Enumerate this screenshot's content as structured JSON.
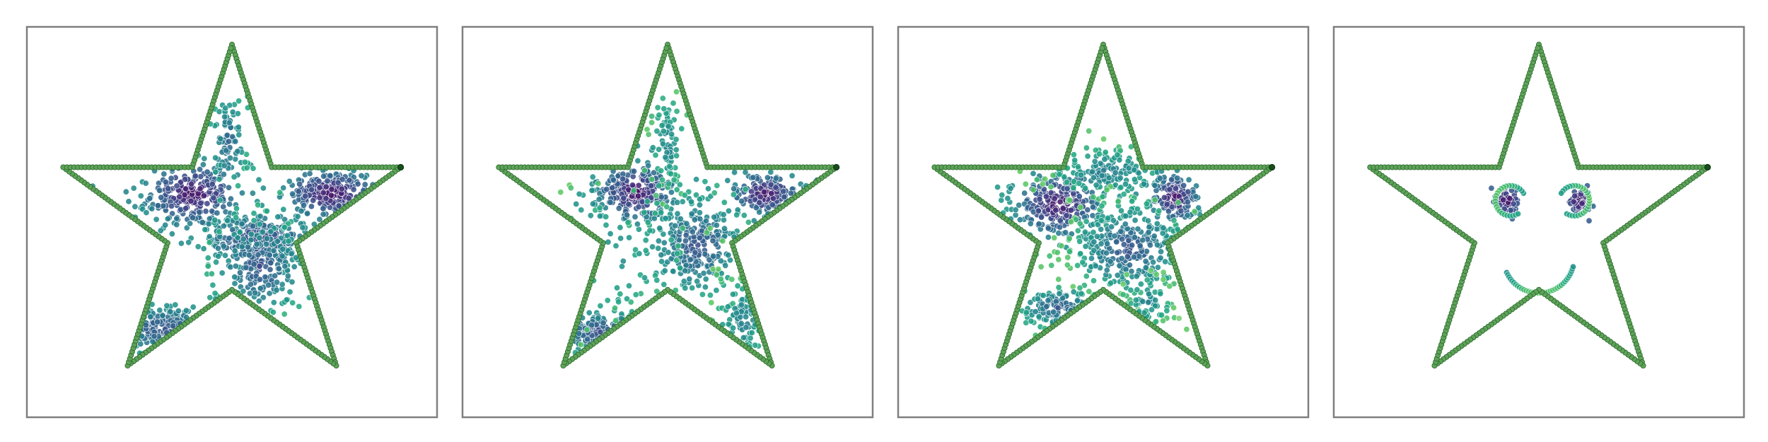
{
  "figure": {
    "panel_count": 4,
    "background": "#ffffff",
    "frame_color": "#7f7f7f"
  },
  "chart_data": [
    {
      "type": "scatter",
      "title": "",
      "xlabel": "",
      "ylabel": "",
      "grid": false,
      "axes_visible": false,
      "xlim": [
        -1.1,
        1.1
      ],
      "ylim": [
        -1.1,
        1.1
      ],
      "boundary": {
        "shape": "star",
        "vertices": [
          [
            0.0,
            1.0
          ],
          [
            0.224,
            0.309
          ],
          [
            0.951,
            0.309
          ],
          [
            0.363,
            -0.118
          ],
          [
            0.588,
            -0.809
          ],
          [
            0.0,
            -0.382
          ],
          [
            -0.588,
            -0.809
          ],
          [
            -0.363,
            -0.118
          ],
          [
            -0.951,
            0.309
          ],
          [
            -0.224,
            0.309
          ]
        ],
        "marker_color": "#5fa35a",
        "marker_edge": "#2e6e2e",
        "end_marker_color": "#174d1a"
      },
      "clusters": [
        {
          "cx": -0.22,
          "cy": 0.16,
          "sx": 0.14,
          "sy": 0.09,
          "n": 280,
          "color_range": [
            0.05,
            0.6
          ]
        },
        {
          "cx": -0.02,
          "cy": 0.45,
          "sx": 0.05,
          "sy": 0.13,
          "n": 90,
          "color_range": [
            0.4,
            0.75
          ]
        },
        {
          "cx": 0.56,
          "cy": 0.16,
          "sx": 0.14,
          "sy": 0.07,
          "n": 220,
          "color_range": [
            0.05,
            0.6
          ]
        },
        {
          "cx": 0.15,
          "cy": -0.1,
          "sx": 0.15,
          "sy": 0.07,
          "n": 260,
          "color_range": [
            0.2,
            0.65
          ]
        },
        {
          "cx": 0.16,
          "cy": -0.25,
          "sx": 0.13,
          "sy": 0.13,
          "n": 200,
          "color_range": [
            0.3,
            0.75
          ]
        },
        {
          "cx": -0.38,
          "cy": -0.6,
          "sx": 0.17,
          "sy": 0.07,
          "n": 150,
          "color_range": [
            0.3,
            0.7
          ]
        }
      ]
    },
    {
      "type": "scatter",
      "title": "",
      "xlabel": "",
      "ylabel": "",
      "grid": false,
      "axes_visible": false,
      "xlim": [
        -1.1,
        1.1
      ],
      "ylim": [
        -1.1,
        1.1
      ],
      "boundary": {
        "shape": "star",
        "vertices": [
          [
            0.0,
            1.0
          ],
          [
            0.224,
            0.309
          ],
          [
            0.951,
            0.309
          ],
          [
            0.363,
            -0.118
          ],
          [
            0.588,
            -0.809
          ],
          [
            0.0,
            -0.382
          ],
          [
            -0.588,
            -0.809
          ],
          [
            -0.363,
            -0.118
          ],
          [
            -0.951,
            0.309
          ],
          [
            -0.224,
            0.309
          ]
        ],
        "marker_color": "#5fa35a",
        "marker_edge": "#2e6e2e",
        "end_marker_color": "#174d1a"
      },
      "clusters": [
        {
          "cx": -0.18,
          "cy": 0.17,
          "sx": 0.12,
          "sy": 0.09,
          "n": 260,
          "color_range": [
            0.05,
            0.65
          ]
        },
        {
          "cx": 0.0,
          "cy": 0.45,
          "sx": 0.05,
          "sy": 0.14,
          "n": 80,
          "color_range": [
            0.55,
            0.85
          ]
        },
        {
          "cx": 0.55,
          "cy": 0.16,
          "sx": 0.1,
          "sy": 0.06,
          "n": 170,
          "color_range": [
            0.05,
            0.6
          ]
        },
        {
          "cx": 0.17,
          "cy": -0.13,
          "sx": 0.14,
          "sy": 0.14,
          "n": 300,
          "color_range": [
            0.3,
            0.75
          ]
        },
        {
          "cx": 0.42,
          "cy": -0.55,
          "sx": 0.08,
          "sy": 0.12,
          "n": 80,
          "color_range": [
            0.5,
            0.85
          ]
        },
        {
          "cx": -0.39,
          "cy": -0.62,
          "sx": 0.14,
          "sy": 0.06,
          "n": 120,
          "color_range": [
            0.3,
            0.7
          ]
        },
        {
          "cx": -0.3,
          "cy": -0.2,
          "sx": 0.3,
          "sy": 0.22,
          "n": 50,
          "color_range": [
            0.6,
            0.9
          ]
        }
      ]
    },
    {
      "type": "scatter",
      "title": "",
      "xlabel": "",
      "ylabel": "",
      "grid": false,
      "axes_visible": false,
      "xlim": [
        -1.1,
        1.1
      ],
      "ylim": [
        -1.1,
        1.1
      ],
      "boundary": {
        "shape": "star",
        "vertices": [
          [
            0.0,
            1.0
          ],
          [
            0.224,
            0.309
          ],
          [
            0.951,
            0.309
          ],
          [
            0.363,
            -0.118
          ],
          [
            0.588,
            -0.809
          ],
          [
            0.0,
            -0.382
          ],
          [
            -0.588,
            -0.809
          ],
          [
            -0.363,
            -0.118
          ],
          [
            -0.951,
            0.309
          ],
          [
            -0.224,
            0.309
          ]
        ],
        "marker_color": "#5fa35a",
        "marker_edge": "#2e6e2e",
        "end_marker_color": "#174d1a"
      },
      "clusters": [
        {
          "cx": -0.25,
          "cy": 0.1,
          "sx": 0.13,
          "sy": 0.1,
          "n": 260,
          "color_range": [
            0.05,
            0.65
          ]
        },
        {
          "cx": 0.03,
          "cy": 0.28,
          "sx": 0.16,
          "sy": 0.08,
          "n": 150,
          "color_range": [
            0.5,
            0.85
          ]
        },
        {
          "cx": 0.4,
          "cy": 0.14,
          "sx": 0.07,
          "sy": 0.07,
          "n": 150,
          "color_range": [
            0.05,
            0.6
          ]
        },
        {
          "cx": 0.15,
          "cy": -0.15,
          "sx": 0.17,
          "sy": 0.14,
          "n": 320,
          "color_range": [
            0.3,
            0.85
          ]
        },
        {
          "cx": -0.25,
          "cy": -0.48,
          "sx": 0.12,
          "sy": 0.06,
          "n": 120,
          "color_range": [
            0.35,
            0.8
          ]
        },
        {
          "cx": 0.25,
          "cy": -0.45,
          "sx": 0.08,
          "sy": 0.08,
          "n": 60,
          "color_range": [
            0.55,
            0.9
          ]
        }
      ]
    },
    {
      "type": "scatter",
      "title": "",
      "xlabel": "",
      "ylabel": "",
      "grid": false,
      "axes_visible": false,
      "xlim": [
        -1.1,
        1.1
      ],
      "ylim": [
        -1.1,
        1.1
      ],
      "boundary": {
        "shape": "star",
        "vertices": [
          [
            0.0,
            1.0
          ],
          [
            0.224,
            0.309
          ],
          [
            0.951,
            0.309
          ],
          [
            0.363,
            -0.118
          ],
          [
            0.588,
            -0.809
          ],
          [
            0.0,
            -0.382
          ],
          [
            -0.588,
            -0.809
          ],
          [
            -0.363,
            -0.118
          ],
          [
            -0.951,
            0.309
          ],
          [
            -0.224,
            0.309
          ]
        ],
        "marker_color": "#5fa35a",
        "marker_edge": "#2e6e2e",
        "end_marker_color": "#174d1a"
      },
      "clusters": [
        {
          "cx": -0.18,
          "cy": 0.12,
          "sx": 0.035,
          "sy": 0.035,
          "n": 60,
          "color_range": [
            0.05,
            0.4
          ]
        },
        {
          "cx": 0.23,
          "cy": 0.12,
          "sx": 0.035,
          "sy": 0.035,
          "n": 60,
          "color_range": [
            0.05,
            0.4
          ]
        }
      ],
      "rings": [
        {
          "cx": -0.16,
          "cy": 0.12,
          "r": 0.085,
          "start_deg": 30,
          "end_deg": 300,
          "n": 26,
          "color_range": [
            0.55,
            0.85
          ]
        },
        {
          "cx": 0.2,
          "cy": 0.12,
          "r": 0.085,
          "start_deg": 240,
          "end_deg": 510,
          "n": 26,
          "color_range": [
            0.55,
            0.85
          ]
        }
      ],
      "smile": {
        "cx": 0.0,
        "cy": -0.2,
        "r": 0.2,
        "start_deg": 205,
        "end_deg": 345,
        "n": 36,
        "color_range": [
          0.45,
          0.85
        ]
      }
    }
  ]
}
